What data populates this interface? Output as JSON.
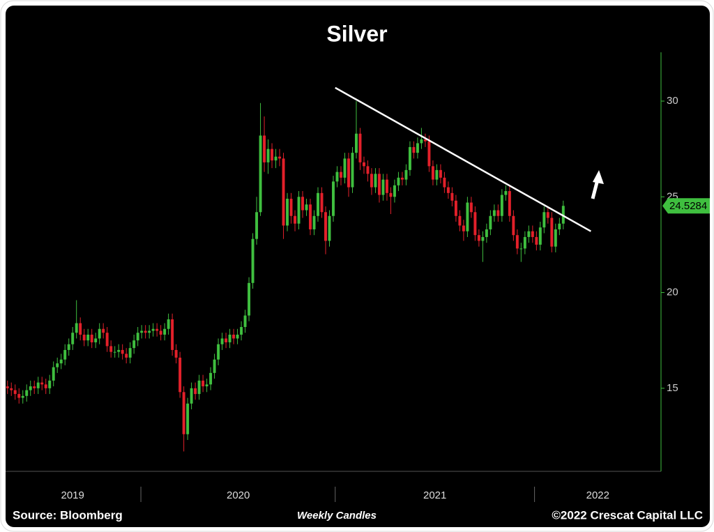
{
  "chart_data": {
    "type": "candlestick",
    "title": "Silver",
    "source": "Source: Bloomberg",
    "subtitle": "Weekly Candles",
    "copyright": "©2022 Crescat Capital LLC",
    "up_color": "#3fbf3f",
    "down_color": "#e3202a",
    "xlim": [
      0,
      171
    ],
    "xticks": [
      35.3,
      86,
      138
    ],
    "year_labels": [
      {
        "value": 17.5,
        "label": "2019"
      },
      {
        "value": 60.7,
        "label": "2020"
      },
      {
        "value": 112,
        "label": "2021"
      },
      {
        "value": 154.5,
        "label": "2022"
      }
    ],
    "ylim": [
      10.66,
      32.55
    ],
    "yticks": [
      15,
      20,
      25,
      30
    ],
    "trendline": {
      "x": [
        86,
        152.7
      ],
      "y": [
        30.7,
        23.2
      ]
    },
    "open": [
      15.1,
      15.0,
      14.9,
      14.7,
      14.5,
      14.6,
      14.9,
      15.1,
      15.0,
      15.3,
      15.2,
      15.0,
      15.4,
      16.1,
      16.3,
      16.5,
      17.0,
      17.3,
      17.9,
      18.4,
      17.8,
      17.5,
      17.8,
      17.4,
      17.6,
      18.1,
      17.9,
      17.2,
      16.9,
      16.9,
      17.0,
      16.8,
      16.6,
      17.1,
      17.5,
      17.9,
      18.0,
      17.9,
      18.0,
      18.1,
      18.0,
      17.8,
      18.1,
      18.6,
      17.0,
      16.6,
      14.8,
      12.6,
      14.2,
      15.0,
      14.7,
      15.4,
      15.1,
      15.2,
      15.8,
      16.5,
      17.3,
      17.6,
      17.4,
      17.8,
      17.6,
      17.8,
      18.2,
      18.8,
      20.5,
      22.8,
      24.2,
      28.2,
      26.8,
      27.5,
      26.9,
      27.1,
      27.0,
      23.5,
      24.9,
      24.0,
      23.6,
      25.0,
      24.3,
      24.6,
      23.3,
      24.0,
      25.2,
      24.2,
      22.7,
      24.0,
      25.8,
      26.3,
      26.0,
      27.0,
      25.5,
      27.3,
      28.3,
      26.8,
      26.6,
      26.2,
      25.5,
      26.2,
      25.1,
      25.9,
      25.2,
      25.0,
      25.6,
      26.0,
      25.9,
      26.4,
      27.6,
      27.3,
      27.8,
      28.0,
      27.9,
      26.6,
      25.9,
      26.4,
      26.0,
      25.5,
      25.2,
      24.8,
      24.0,
      23.5,
      23.2,
      24.7,
      24.2,
      23.0,
      22.7,
      22.9,
      23.3,
      24.0,
      24.3,
      24.0,
      25.1,
      25.3,
      24.0,
      23.0,
      22.3,
      22.3,
      22.9,
      23.2,
      22.9,
      22.5,
      23.4,
      24.2,
      23.9,
      22.4,
      23.3,
      23.6
    ],
    "high": [
      15.4,
      15.3,
      15.2,
      15.0,
      14.9,
      15.2,
      15.4,
      15.4,
      15.6,
      15.6,
      15.5,
      15.7,
      16.4,
      16.6,
      16.8,
      17.3,
      17.6,
      18.2,
      19.6,
      18.7,
      18.1,
      18.1,
      18.1,
      17.9,
      18.4,
      18.4,
      18.2,
      17.5,
      17.2,
      17.3,
      17.3,
      17.1,
      17.4,
      17.8,
      18.2,
      18.3,
      18.3,
      18.3,
      18.4,
      18.4,
      18.3,
      18.4,
      18.9,
      18.9,
      17.3,
      16.9,
      15.1,
      14.5,
      15.3,
      15.3,
      15.7,
      15.7,
      15.5,
      16.1,
      16.8,
      17.6,
      17.9,
      17.9,
      18.1,
      18.1,
      18.1,
      18.5,
      19.1,
      20.8,
      23.1,
      25.0,
      29.9,
      29.2,
      28.0,
      27.8,
      27.5,
      27.5,
      27.3,
      25.2,
      25.2,
      24.3,
      25.3,
      25.3,
      24.9,
      24.9,
      24.3,
      25.5,
      25.5,
      24.5,
      24.3,
      26.1,
      26.6,
      26.6,
      27.3,
      27.3,
      27.6,
      30.0,
      28.6,
      27.1,
      26.9,
      26.5,
      26.5,
      26.5,
      26.2,
      26.2,
      25.5,
      25.9,
      26.3,
      26.3,
      26.7,
      27.9,
      27.9,
      28.1,
      28.6,
      28.3,
      28.2,
      26.9,
      26.7,
      26.7,
      26.3,
      25.8,
      25.5,
      25.1,
      24.3,
      23.8,
      25.0,
      25.0,
      24.5,
      23.3,
      23.2,
      23.6,
      24.3,
      24.6,
      24.6,
      25.4,
      25.6,
      25.6,
      24.3,
      23.3,
      22.6,
      23.2,
      23.5,
      23.5,
      23.2,
      23.7,
      24.5,
      24.5,
      24.2,
      23.6,
      23.9,
      24.8
    ],
    "low": [
      14.7,
      14.6,
      14.4,
      14.2,
      14.2,
      14.3,
      14.6,
      14.7,
      14.7,
      14.9,
      14.7,
      14.7,
      15.1,
      15.8,
      16.0,
      16.2,
      16.7,
      17.0,
      17.6,
      17.5,
      17.2,
      17.2,
      17.1,
      17.1,
      17.3,
      17.6,
      16.9,
      16.6,
      16.6,
      16.6,
      16.5,
      16.3,
      16.3,
      16.8,
      17.2,
      17.6,
      17.6,
      17.6,
      17.7,
      17.7,
      17.5,
      17.5,
      17.8,
      16.7,
      16.3,
      14.5,
      11.7,
      12.3,
      13.9,
      14.4,
      14.4,
      14.8,
      14.8,
      14.9,
      15.5,
      16.2,
      17.0,
      17.1,
      17.1,
      17.3,
      17.3,
      17.5,
      17.9,
      18.5,
      20.2,
      22.5,
      24.0,
      26.3,
      26.2,
      26.5,
      26.5,
      26.6,
      22.8,
      23.2,
      23.6,
      23.2,
      23.3,
      23.9,
      24.0,
      23.0,
      23.0,
      23.7,
      23.9,
      22.0,
      22.4,
      23.7,
      25.5,
      25.6,
      25.7,
      25.0,
      25.2,
      27.0,
      26.4,
      26.2,
      25.8,
      25.1,
      25.2,
      24.7,
      24.8,
      24.8,
      24.1,
      24.7,
      25.3,
      25.6,
      25.6,
      26.1,
      27.0,
      27.0,
      27.5,
      27.6,
      26.3,
      25.6,
      25.6,
      25.7,
      25.2,
      24.9,
      24.5,
      23.7,
      23.2,
      22.7,
      22.9,
      23.9,
      22.7,
      22.4,
      21.6,
      22.6,
      23.0,
      23.7,
      23.7,
      23.7,
      24.8,
      23.7,
      22.7,
      22.0,
      21.6,
      22.0,
      22.6,
      22.6,
      22.2,
      22.2,
      23.1,
      23.6,
      22.1,
      22.1,
      23.0,
      23.3
    ],
    "close": [
      15.0,
      14.9,
      14.7,
      14.5,
      14.6,
      14.9,
      15.1,
      15.0,
      15.3,
      15.2,
      15.0,
      15.4,
      16.1,
      16.3,
      16.5,
      17.0,
      17.3,
      17.9,
      18.4,
      17.8,
      17.5,
      17.8,
      17.4,
      17.6,
      18.1,
      17.9,
      17.2,
      16.9,
      16.9,
      17.0,
      16.8,
      16.6,
      17.1,
      17.5,
      17.9,
      18.0,
      17.9,
      18.0,
      18.1,
      18.0,
      17.8,
      18.1,
      18.6,
      17.0,
      16.6,
      14.8,
      12.6,
      14.2,
      15.0,
      14.7,
      15.4,
      15.1,
      15.2,
      15.8,
      16.5,
      17.3,
      17.6,
      17.4,
      17.8,
      17.6,
      17.8,
      18.2,
      18.8,
      20.5,
      22.8,
      24.2,
      28.2,
      26.8,
      27.5,
      26.9,
      27.1,
      27.0,
      23.5,
      24.9,
      24.0,
      23.6,
      25.0,
      24.3,
      24.6,
      23.3,
      24.0,
      25.2,
      24.2,
      22.7,
      24.0,
      25.8,
      26.3,
      26.0,
      27.0,
      25.5,
      27.3,
      28.3,
      26.8,
      26.6,
      26.2,
      25.5,
      26.2,
      25.1,
      25.9,
      25.2,
      25.0,
      25.6,
      26.0,
      25.9,
      26.4,
      27.6,
      27.3,
      27.8,
      28.0,
      27.9,
      26.6,
      25.9,
      26.4,
      26.0,
      25.5,
      25.2,
      24.8,
      24.0,
      23.5,
      23.2,
      24.7,
      24.2,
      23.0,
      22.7,
      22.9,
      23.3,
      24.0,
      24.3,
      24.0,
      25.1,
      25.3,
      24.0,
      23.0,
      22.3,
      22.3,
      22.9,
      23.2,
      22.9,
      22.5,
      23.4,
      24.2,
      23.9,
      22.4,
      23.3,
      23.6,
      24.5284
    ]
  }
}
